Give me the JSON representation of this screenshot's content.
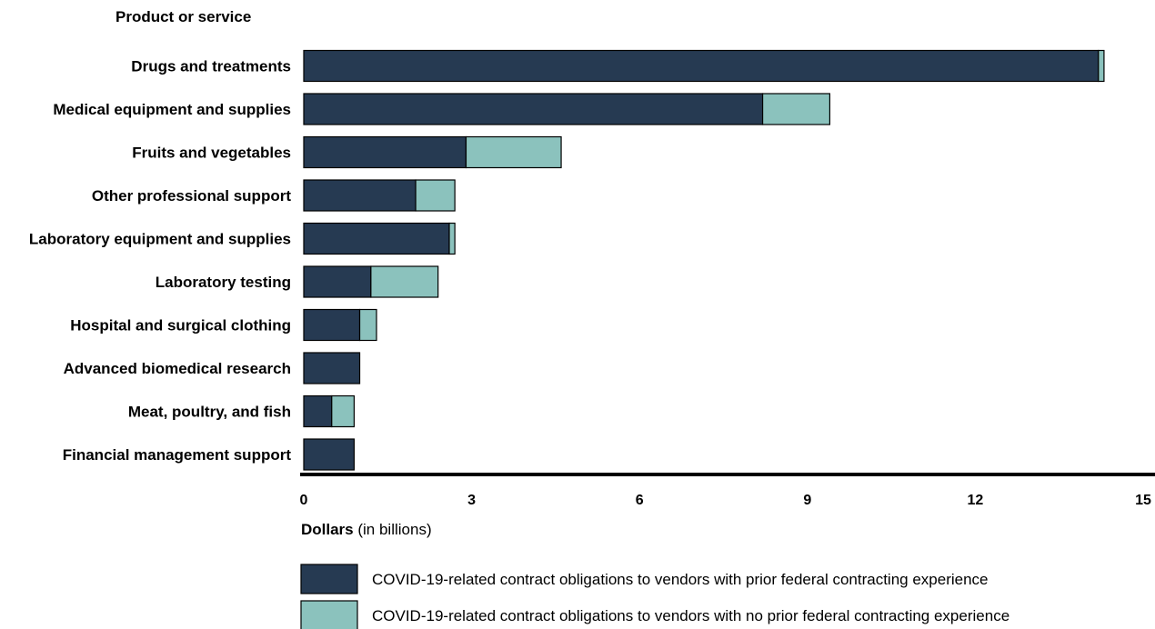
{
  "chart_data": {
    "type": "bar",
    "orientation": "horizontal",
    "stacked": true,
    "category_axis_title": "Product or service",
    "categories": [
      "Drugs and treatments",
      "Medical equipment and supplies",
      "Fruits and vegetables",
      "Other professional support",
      "Laboratory equipment and supplies",
      "Laboratory testing",
      "Hospital and surgical clothing",
      "Advanced biomedical research",
      "Meat, poultry, and fish",
      "Financial management support"
    ],
    "series": [
      {
        "name": "COVID-19-related contract obligations to vendors with prior federal contracting experience",
        "color": "#263a52",
        "values": [
          14.2,
          8.2,
          2.9,
          2.0,
          2.6,
          1.2,
          1.0,
          1.0,
          0.5,
          0.9
        ]
      },
      {
        "name": "COVID-19-related contract obligations to vendors with no prior federal contracting experience",
        "color": "#8bc2bd",
        "values": [
          0.1,
          1.2,
          1.7,
          0.7,
          0.1,
          1.2,
          0.3,
          0.0,
          0.4,
          0.0
        ]
      }
    ],
    "xlabel_bold": "Dollars",
    "xlabel_normal": " (in billions)",
    "xlim": [
      0,
      15
    ],
    "xticks": [
      0,
      3,
      6,
      9,
      12,
      15
    ],
    "grid": false,
    "legend_position": "bottom"
  }
}
